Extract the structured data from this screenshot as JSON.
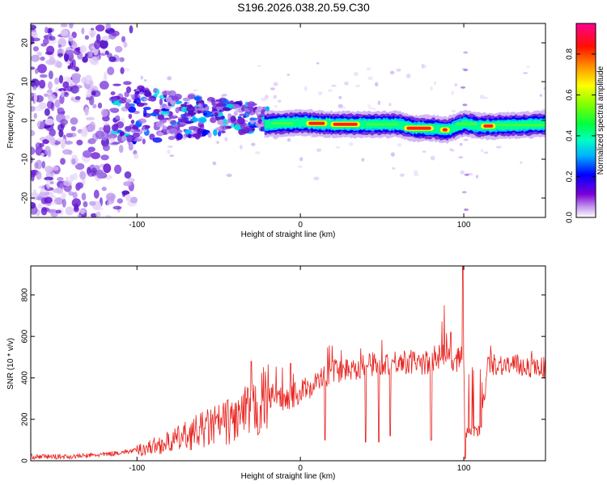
{
  "title": "S196.2026.038.20.59.C30",
  "colors": {
    "line": "#e8221d",
    "axis": "#000000",
    "background": "#ffffff"
  },
  "chart_data": [
    {
      "type": "heatmap",
      "xlabel": "Height of straight line (km)",
      "ylabel": "Frequency (Hz)",
      "xlim": [
        -165,
        150
      ],
      "ylim": [
        -25,
        25
      ],
      "xticks": [
        -100,
        0,
        100
      ],
      "xtick_labels": [
        "-100",
        "0",
        "100"
      ],
      "yticks": [
        -20,
        -10,
        0,
        10,
        20
      ],
      "ytick_labels": [
        "-20",
        "-10",
        "0",
        "10",
        "20"
      ],
      "colorbar": {
        "label": "Normalized spectral amplitude",
        "range": [
          0,
          0.95
        ],
        "ticks": [
          0.0,
          0.2,
          0.4,
          0.6,
          0.8
        ],
        "tick_labels": [
          "0.0",
          "0.2",
          "0.4",
          "0.6",
          "0.8"
        ],
        "colormap": [
          "#ffffff",
          "#7b00d6",
          "#0000ff",
          "#00c8ff",
          "#00ff80",
          "#80ff00",
          "#ffff00",
          "#ff8000",
          "#ff0000",
          "#ff0080"
        ]
      },
      "ridge": {
        "description": "dominant frequency ridge near 0 Hz",
        "points": [
          [
            -20,
            -1
          ],
          [
            0,
            -0.5
          ],
          [
            20,
            -1
          ],
          [
            40,
            -1
          ],
          [
            60,
            -1
          ],
          [
            70,
            -2
          ],
          [
            80,
            -2
          ],
          [
            90,
            -2.5
          ],
          [
            100,
            -0.8
          ],
          [
            110,
            -1.5
          ],
          [
            150,
            -1
          ]
        ],
        "peak_amplitude_segments": [
          [
            5,
            15
          ],
          [
            20,
            35
          ],
          [
            65,
            80
          ],
          [
            87,
            90
          ],
          [
            112,
            118
          ]
        ]
      }
    },
    {
      "type": "line",
      "xlabel": "Height of straight line (km)",
      "ylabel": "SNR (10 * v/v)",
      "xlim": [
        -165,
        150
      ],
      "ylim": [
        0,
        940
      ],
      "xticks": [
        -100,
        0,
        100
      ],
      "xtick_labels": [
        "-100",
        "0",
        "100"
      ],
      "yticks": [
        0,
        200,
        400,
        600,
        800
      ],
      "ytick_labels": [
        "0",
        "200",
        "400",
        "600",
        "800"
      ],
      "envelope": {
        "x": [
          -165,
          -140,
          -120,
          -100,
          -80,
          -60,
          -40,
          -25,
          -20,
          -10,
          0,
          20,
          40,
          60,
          80,
          88,
          95,
          99,
          102,
          110,
          115,
          130,
          150
        ],
        "y": [
          20,
          20,
          30,
          50,
          90,
          150,
          200,
          260,
          320,
          300,
          330,
          430,
          460,
          480,
          470,
          520,
          480,
          520,
          200,
          140,
          470,
          460,
          450
        ]
      },
      "spikes": [
        [
          -11,
          450
        ],
        [
          -6,
          470
        ],
        [
          -30,
          480
        ],
        [
          88,
          750
        ],
        [
          99.5,
          940
        ],
        [
          92,
          620
        ]
      ],
      "dips": [
        [
          15,
          100
        ],
        [
          40,
          90
        ],
        [
          48,
          90
        ],
        [
          55,
          120
        ],
        [
          80,
          100
        ],
        [
          101,
          10
        ],
        [
          105,
          140
        ],
        [
          109,
          150
        ]
      ]
    }
  ]
}
